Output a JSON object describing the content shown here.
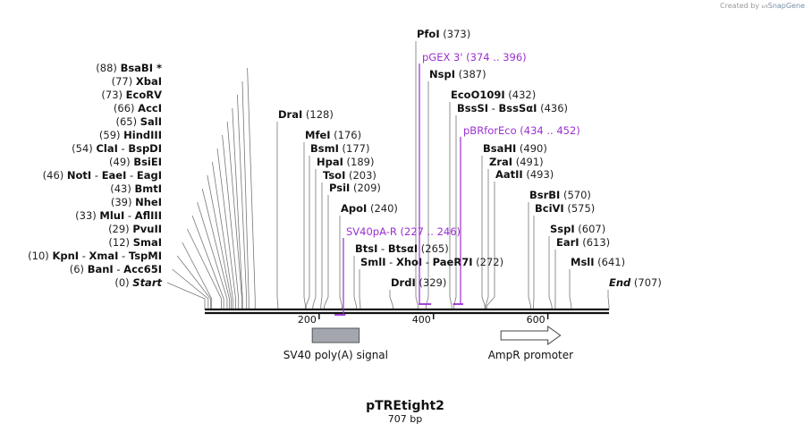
{
  "credit": {
    "prefix": "Created by",
    "brand": "SnapGene"
  },
  "map": {
    "name": "pTREtight2",
    "length_label": "707 bp",
    "length_bp": 707,
    "ticks": [
      {
        "pos": 200,
        "label": "200"
      },
      {
        "pos": 400,
        "label": "400"
      },
      {
        "pos": 600,
        "label": "600"
      }
    ],
    "left_sites": [
      {
        "names": [
          "Start"
        ],
        "pos_label": "(0)",
        "pos": 0,
        "italic": true
      },
      {
        "names": [
          "BanI",
          "Acc65I"
        ],
        "pos_label": "(6)",
        "pos": 6
      },
      {
        "names": [
          "KpnI",
          "XmaI",
          "TspMI"
        ],
        "pos_label": "(10)",
        "pos": 10
      },
      {
        "names": [
          "SmaI"
        ],
        "pos_label": "(12)",
        "pos": 12
      },
      {
        "names": [
          "PvuII"
        ],
        "pos_label": "(29)",
        "pos": 29
      },
      {
        "names": [
          "MluI",
          "AflIII"
        ],
        "pos_label": "(33)",
        "pos": 33
      },
      {
        "names": [
          "NheI"
        ],
        "pos_label": "(39)",
        "pos": 39
      },
      {
        "names": [
          "BmtI"
        ],
        "pos_label": "(43)",
        "pos": 43
      },
      {
        "names": [
          "NotI",
          "EaeI",
          "EagI"
        ],
        "pos_label": "(46)",
        "pos": 46
      },
      {
        "names": [
          "BsiEI"
        ],
        "pos_label": "(49)",
        "pos": 49
      },
      {
        "names": [
          "ClaI",
          "BspDI"
        ],
        "pos_label": "(54)",
        "pos": 54
      },
      {
        "names": [
          "HindIII"
        ],
        "pos_label": "(59)",
        "pos": 59
      },
      {
        "names": [
          "SalI"
        ],
        "pos_label": "(65)",
        "pos": 65
      },
      {
        "names": [
          "AccI"
        ],
        "pos_label": "(66)",
        "pos": 66
      },
      {
        "names": [
          "EcoRV"
        ],
        "pos_label": "(73)",
        "pos": 73
      },
      {
        "names": [
          "XbaI"
        ],
        "pos_label": "(77)",
        "pos": 77
      },
      {
        "names": [
          "BsaBI *"
        ],
        "pos_label": "(88)",
        "pos": 88
      }
    ],
    "right_sites": [
      {
        "names": [
          "DraI"
        ],
        "pos_label": "(128)",
        "pos": 128
      },
      {
        "names": [
          "MfeI"
        ],
        "pos_label": "(176)",
        "pos": 176
      },
      {
        "names": [
          "BsmI"
        ],
        "pos_label": "(177)",
        "pos": 177
      },
      {
        "names": [
          "HpaI"
        ],
        "pos_label": "(189)",
        "pos": 189
      },
      {
        "names": [
          "TsoI"
        ],
        "pos_label": "(203)",
        "pos": 203
      },
      {
        "names": [
          "PsiI"
        ],
        "pos_label": "(209)",
        "pos": 209
      },
      {
        "names": [
          "ApoI"
        ],
        "pos_label": "(240)",
        "pos": 240
      },
      {
        "names": [
          "BtsI",
          "BtsαI"
        ],
        "pos_label": "(265)",
        "pos": 265
      },
      {
        "names": [
          "SmlI",
          "XhoI",
          "PaeR7I"
        ],
        "pos_label": "(272)",
        "pos": 272
      },
      {
        "names": [
          "DrdI"
        ],
        "pos_label": "(329)",
        "pos": 329
      },
      {
        "names": [
          "PfoI"
        ],
        "pos_label": "(373)",
        "pos": 373
      },
      {
        "names": [
          "NspI"
        ],
        "pos_label": "(387)",
        "pos": 387
      },
      {
        "names": [
          "EcoO109I"
        ],
        "pos_label": "(432)",
        "pos": 432
      },
      {
        "names": [
          "BssSI",
          "BssSαI"
        ],
        "pos_label": "(436)",
        "pos": 436
      },
      {
        "names": [
          "BsaHI"
        ],
        "pos_label": "(490)",
        "pos": 490
      },
      {
        "names": [
          "ZraI"
        ],
        "pos_label": "(491)",
        "pos": 491
      },
      {
        "names": [
          "AatII"
        ],
        "pos_label": "(493)",
        "pos": 493
      },
      {
        "names": [
          "BsrBI"
        ],
        "pos_label": "(570)",
        "pos": 570
      },
      {
        "names": [
          "BciVI"
        ],
        "pos_label": "(575)",
        "pos": 575
      },
      {
        "names": [
          "SspI"
        ],
        "pos_label": "(607)",
        "pos": 607
      },
      {
        "names": [
          "EarI"
        ],
        "pos_label": "(613)",
        "pos": 613
      },
      {
        "names": [
          "MslI"
        ],
        "pos_label": "(641)",
        "pos": 641
      },
      {
        "names": [
          "End"
        ],
        "pos_label": "(707)",
        "pos": 707,
        "italic": true
      }
    ],
    "primers": [
      {
        "name": "pGEX 3'",
        "range_label": "(374 .. 396)",
        "start": 374,
        "end": 396,
        "color": "#9b30d0"
      },
      {
        "name": "pBRforEco",
        "range_label": "(434 .. 452)",
        "start": 434,
        "end": 452,
        "color": "#9b30d0"
      },
      {
        "name": "SV40pA-R",
        "range_label": "(227 .. 246)",
        "start": 227,
        "end": 246,
        "color": "#9b30d0"
      }
    ],
    "features": [
      {
        "name": "SV40 poly(A) signal",
        "start": 188,
        "end": 270,
        "shape": "box",
        "color": "#a3a6ae"
      },
      {
        "name": "AmpR promoter",
        "start": 518,
        "end": 622,
        "shape": "arrow",
        "color": "#ffffff"
      }
    ]
  }
}
